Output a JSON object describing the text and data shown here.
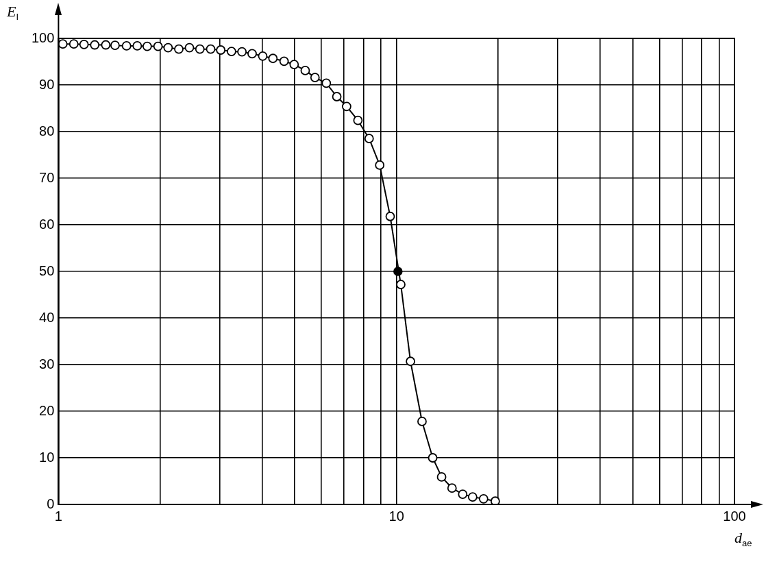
{
  "chart_data": {
    "type": "line",
    "xlabel": "d$_{ae}$",
    "ylabel": "E$_{I}$",
    "log": "x",
    "grid": true,
    "legend": false,
    "marker": "circle",
    "line_style": "solid",
    "xlim": [
      1,
      100
    ],
    "xticks": [
      1,
      {
        "value": 2,
        "label": null
      },
      {
        "value": 3,
        "label": null
      },
      {
        "value": 4,
        "label": null
      },
      {
        "value": 5,
        "label": null
      },
      {
        "value": 6,
        "label": null
      },
      {
        "value": 7,
        "label": null
      },
      {
        "value": 8,
        "label": null
      },
      {
        "value": 9,
        "label": null
      },
      10,
      {
        "value": 20,
        "label": null
      },
      {
        "value": 30,
        "label": null
      },
      {
        "value": 40,
        "label": null
      },
      {
        "value": 50,
        "label": null
      },
      {
        "value": 60,
        "label": null
      },
      {
        "value": 70,
        "label": null
      },
      {
        "value": 80,
        "label": null
      },
      {
        "value": 90,
        "label": null
      },
      100
    ],
    "ylim": [
      0,
      100
    ],
    "yticks": [
      0,
      10,
      20,
      30,
      40,
      50,
      60,
      70,
      80,
      90,
      100
    ],
    "series": [
      {
        "type": "line",
        "color": "#000000",
        "x": [
          1.03,
          1.11,
          1.19,
          1.28,
          1.38,
          1.47,
          1.59,
          1.71,
          1.83,
          1.97,
          2.11,
          2.27,
          2.44,
          2.62,
          2.82,
          3.02,
          3.25,
          3.49,
          3.74,
          4.02,
          4.31,
          4.65,
          4.98,
          5.37,
          5.74,
          6.2,
          6.66,
          7.12,
          7.69,
          8.3,
          8.92,
          9.58,
          10.3,
          11.0,
          11.9,
          12.8,
          13.6,
          14.6,
          15.7,
          16.8,
          18.1,
          19.6
        ],
        "values": [
          98.8,
          98.8,
          98.7,
          98.6,
          98.6,
          98.5,
          98.4,
          98.4,
          98.3,
          98.3,
          98.0,
          97.7,
          98.0,
          97.7,
          97.7,
          97.5,
          97.2,
          97.1,
          96.7,
          96.2,
          95.7,
          95.1,
          94.4,
          93.1,
          91.6,
          90.4,
          87.5,
          85.4,
          82.4,
          78.5,
          72.8,
          61.8,
          47.2,
          30.7,
          17.8,
          10,
          5.9,
          3.5,
          2.2,
          1.6,
          1.2,
          0.7
        ]
      },
      {
        "type": "scatter",
        "color": "#000000",
        "x": [
          10.1
        ],
        "values": [
          50
        ]
      }
    ]
  }
}
